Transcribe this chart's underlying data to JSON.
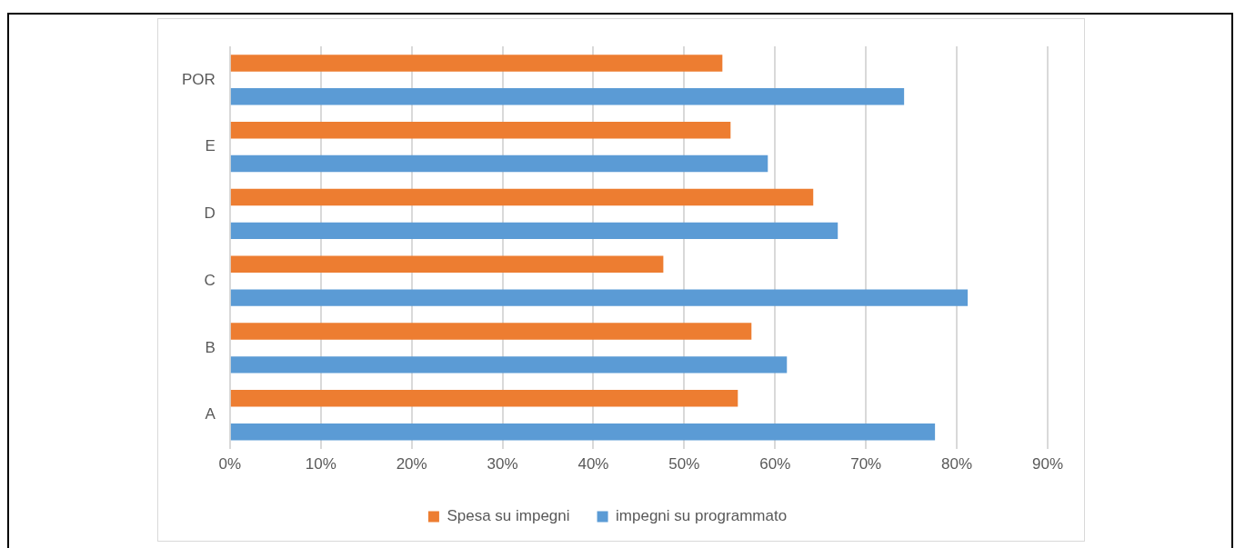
{
  "chart_data": {
    "type": "bar",
    "orientation": "horizontal",
    "categories": [
      "POR",
      "E",
      "D",
      "C",
      "B",
      "A"
    ],
    "series": [
      {
        "name": "Spesa su impegni",
        "color": "#ed7d31",
        "values": [
          54.2,
          55.1,
          64.2,
          47.7,
          57.4,
          55.9
        ]
      },
      {
        "name": "impegni su programmato",
        "color": "#5b9bd5",
        "values": [
          74.2,
          59.2,
          66.9,
          81.2,
          61.3,
          77.6
        ]
      }
    ],
    "xlim": [
      0,
      90
    ],
    "xticks": [
      {
        "value": 0,
        "label": "0%"
      },
      {
        "value": 10,
        "label": "10%"
      },
      {
        "value": 20,
        "label": "20%"
      },
      {
        "value": 30,
        "label": "30%"
      },
      {
        "value": 40,
        "label": "40%"
      },
      {
        "value": 50,
        "label": "50%"
      },
      {
        "value": 60,
        "label": "60%"
      },
      {
        "value": 70,
        "label": "70%"
      },
      {
        "value": 80,
        "label": "80%"
      },
      {
        "value": 90,
        "label": "90%"
      }
    ],
    "grid": "x",
    "legend": "bottom"
  }
}
